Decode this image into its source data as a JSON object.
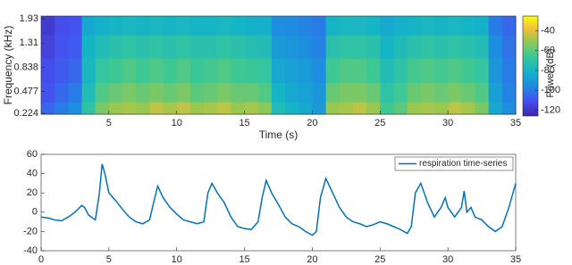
{
  "chart_data": [
    {
      "type": "heatmap",
      "xlabel": "Time (s)",
      "ylabel": "Frequency (kHz)",
      "colorbar_label": "Power (dB)",
      "colormap": "parula",
      "yscale": "mel",
      "xlim": [
        0,
        35
      ],
      "xticks": [
        5,
        10,
        15,
        20,
        25,
        30,
        35
      ],
      "ylim": [
        0.215,
        2.01
      ],
      "yticks": [
        0.224,
        0.477,
        0.838,
        1.31,
        1.93
      ],
      "clim": [
        -126,
        -25
      ],
      "cticks": [
        -40,
        -60,
        -80,
        -100,
        -120
      ],
      "x_bins": [
        0,
        1,
        2,
        3,
        4,
        5,
        6,
        7,
        8,
        9,
        10,
        11,
        12,
        13,
        14,
        15,
        16,
        17,
        18,
        19,
        20,
        21,
        22,
        23,
        24,
        25,
        26,
        27,
        28,
        29,
        30,
        31,
        32,
        33,
        34,
        35
      ],
      "y_bins": [
        0.215,
        0.35,
        0.6,
        1.0,
        1.5,
        2.01
      ],
      "values": [
        [
          -105,
          -100,
          -95,
          -70,
          -55,
          -50,
          -48,
          -50,
          -45,
          -48,
          -45,
          -50,
          -48,
          -45,
          -50,
          -48,
          -52,
          -75,
          -80,
          -85,
          -90,
          -50,
          -48,
          -45,
          -50,
          -65,
          -60,
          -50,
          -48,
          -50,
          -45,
          -48,
          -55,
          -85,
          -95
        ],
        [
          -110,
          -105,
          -100,
          -75,
          -62,
          -58,
          -55,
          -58,
          -55,
          -58,
          -55,
          -60,
          -58,
          -55,
          -58,
          -58,
          -62,
          -80,
          -85,
          -88,
          -92,
          -58,
          -55,
          -55,
          -58,
          -70,
          -65,
          -58,
          -55,
          -58,
          -55,
          -58,
          -62,
          -88,
          -98
        ],
        [
          -112,
          -108,
          -105,
          -78,
          -68,
          -65,
          -62,
          -65,
          -62,
          -65,
          -62,
          -66,
          -64,
          -62,
          -65,
          -66,
          -68,
          -85,
          -88,
          -90,
          -95,
          -65,
          -62,
          -62,
          -65,
          -75,
          -70,
          -64,
          -62,
          -64,
          -62,
          -65,
          -68,
          -92,
          -100
        ],
        [
          -115,
          -110,
          -108,
          -80,
          -75,
          -72,
          -70,
          -72,
          -70,
          -72,
          -70,
          -72,
          -72,
          -70,
          -72,
          -74,
          -75,
          -90,
          -92,
          -95,
          -98,
          -72,
          -70,
          -70,
          -72,
          -80,
          -76,
          -72,
          -70,
          -72,
          -70,
          -72,
          -75,
          -95,
          -102
        ],
        [
          -118,
          -112,
          -110,
          -85,
          -82,
          -80,
          -78,
          -80,
          -78,
          -80,
          -78,
          -80,
          -80,
          -78,
          -80,
          -82,
          -82,
          -95,
          -96,
          -98,
          -100,
          -80,
          -78,
          -78,
          -80,
          -85,
          -82,
          -80,
          -78,
          -80,
          -78,
          -80,
          -82,
          -100,
          -105
        ]
      ]
    },
    {
      "type": "line",
      "legend": "upper right",
      "xlim": [
        0,
        35
      ],
      "xticks": [
        0,
        5,
        10,
        15,
        20,
        25,
        30,
        35
      ],
      "ylim": [
        -40,
        60
      ],
      "yticks": [
        -40,
        -20,
        0,
        20,
        40,
        60
      ],
      "x": [
        0,
        0.5,
        1,
        1.5,
        2,
        2.5,
        3,
        3.2,
        3.5,
        4,
        4.3,
        4.5,
        4.7,
        5,
        5.5,
        6,
        6.5,
        7,
        7.5,
        8,
        8.3,
        8.6,
        9,
        9.5,
        10,
        10.5,
        11,
        11.5,
        12,
        12.3,
        12.6,
        13,
        13.5,
        14,
        14.5,
        15,
        15.5,
        16,
        16.3,
        16.6,
        17,
        17.5,
        18,
        18.5,
        19,
        19.5,
        20,
        20.3,
        20.6,
        21,
        21.5,
        22,
        22.5,
        23,
        23.5,
        24,
        24.5,
        25,
        25.5,
        26,
        26.5,
        27,
        27.3,
        27.6,
        28,
        28.5,
        29,
        29.5,
        29.8,
        30,
        30.5,
        31,
        31.2,
        31.4,
        31.7,
        32,
        32.5,
        33,
        33.5,
        34,
        34.5,
        35
      ],
      "series": [
        {
          "name": "respiration time-series",
          "color": "#0072bd",
          "values": [
            -5,
            -6,
            -8,
            -9,
            -5,
            0,
            7,
            5,
            -3,
            -8,
            20,
            50,
            40,
            20,
            12,
            3,
            -5,
            -10,
            -12,
            -8,
            10,
            27,
            15,
            5,
            -2,
            -8,
            -10,
            -12,
            -10,
            20,
            30,
            20,
            10,
            -5,
            -15,
            -17,
            -18,
            -10,
            15,
            33,
            20,
            8,
            -5,
            -12,
            -15,
            -20,
            -24,
            -20,
            15,
            35,
            20,
            5,
            -5,
            -10,
            -12,
            -15,
            -13,
            -10,
            -12,
            -15,
            -18,
            -22,
            -15,
            20,
            30,
            10,
            -5,
            5,
            15,
            5,
            -5,
            5,
            22,
            0,
            5,
            -5,
            -8,
            -15,
            -20,
            -15,
            5,
            30
          ]
        }
      ]
    }
  ]
}
